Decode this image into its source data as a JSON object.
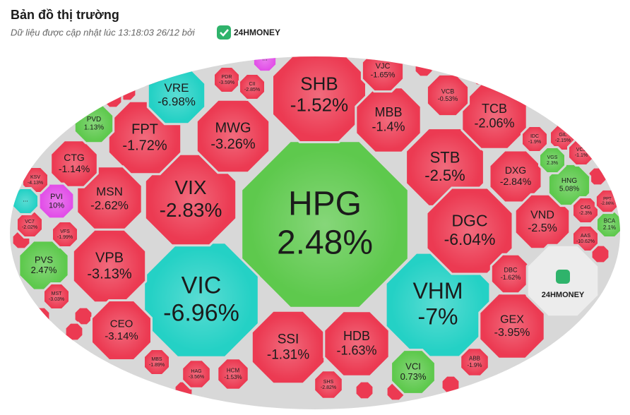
{
  "header": {
    "title": "Bản đồ thị trường",
    "subtitle": "Dữ liệu được cập nhật lúc 13:18:03 26/12 bởi",
    "brand": "24HMONEY"
  },
  "cells": [
    {
      "label": "HPG",
      "change": "2.48%",
      "color": "#5ec94d"
    },
    {
      "label": "VIC",
      "change": "-6.96%",
      "color": "#24d1c5"
    },
    {
      "label": "VHM",
      "change": "-7%",
      "color": "#24d1c5"
    },
    {
      "label": "SHB",
      "change": "-1.52%",
      "color": "#ec3a52"
    },
    {
      "label": "VIX",
      "change": "-2.83%",
      "color": "#ec3a52"
    },
    {
      "label": "MWG",
      "change": "-3.26%",
      "color": "#ec3a52"
    },
    {
      "label": "FPT",
      "change": "-1.72%",
      "color": "#ec3a52"
    },
    {
      "label": "VRE",
      "change": "-6.98%",
      "color": "#24d1c5"
    },
    {
      "label": "MSN",
      "change": "-2.62%",
      "color": "#ec3a52"
    },
    {
      "label": "VPB",
      "change": "-3.13%",
      "color": "#ec3a52"
    },
    {
      "label": "CTG",
      "change": "-1.14%",
      "color": "#ec3a52"
    },
    {
      "label": "PVD",
      "change": "1.13%",
      "color": "#5ec94d"
    },
    {
      "label": "PVI",
      "change": "10%",
      "color": "#e24fe8"
    },
    {
      "label": "PVS",
      "change": "2.47%",
      "color": "#5ec94d"
    },
    {
      "label": "CEO",
      "change": "-3.14%",
      "color": "#ec3a52"
    },
    {
      "label": "SSI",
      "change": "-1.31%",
      "color": "#ec3a52"
    },
    {
      "label": "HDB",
      "change": "-1.63%",
      "color": "#ec3a52"
    },
    {
      "label": "VCI",
      "change": "0.73%",
      "color": "#5ec94d"
    },
    {
      "label": "MBB",
      "change": "-1.4%",
      "color": "#ec3a52"
    },
    {
      "label": "STB",
      "change": "-2.5%",
      "color": "#ec3a52"
    },
    {
      "label": "TCB",
      "change": "-2.06%",
      "color": "#ec3a52"
    },
    {
      "label": "DGC",
      "change": "-6.04%",
      "color": "#ec3a52"
    },
    {
      "label": "DXG",
      "change": "-2.84%",
      "color": "#ec3a52"
    },
    {
      "label": "VND",
      "change": "-2.5%",
      "color": "#ec3a52"
    },
    {
      "label": "HNG",
      "change": "5.08%",
      "color": "#5ec94d"
    },
    {
      "label": "GEX",
      "change": "-3.95%",
      "color": "#ec3a52"
    },
    {
      "label": "DBC",
      "change": "-1.62%",
      "color": "#ec3a52"
    },
    {
      "label": "VJC",
      "change": "-1.65%",
      "color": "#ec3a52"
    },
    {
      "label": "VCB",
      "change": "-0.53%",
      "color": "#ec3a52"
    },
    {
      "label": "PDR",
      "change": "-3.59%",
      "color": "#ec3a52"
    },
    {
      "label": "CII",
      "change": "-2.85%",
      "color": "#ec3a52"
    },
    {
      "label": "IDC",
      "change": "-1.9%",
      "color": "#ec3a52"
    },
    {
      "label": "GIL",
      "change": "-2.15%",
      "color": "#ec3a52"
    },
    {
      "label": "VGS",
      "change": "2.3%",
      "color": "#5ec94d"
    },
    {
      "label": "VCS",
      "change": "-1.1%",
      "color": "#ec3a52"
    },
    {
      "label": "KSV",
      "change": "-4.13%",
      "color": "#ec3a52"
    },
    {
      "label": "VC7",
      "change": "-2.02%",
      "color": "#ec3a52"
    },
    {
      "label": "VFS",
      "change": "-1.99%",
      "color": "#ec3a52"
    },
    {
      "label": "MST",
      "change": "-3.03%",
      "color": "#ec3a52"
    },
    {
      "label": "MBS",
      "change": "-1.89%",
      "color": "#ec3a52"
    },
    {
      "label": "HAG",
      "change": "-3.56%",
      "color": "#ec3a52"
    },
    {
      "label": "HCM",
      "change": "-1.53%",
      "color": "#ec3a52"
    },
    {
      "label": "SHS",
      "change": "-2.82%",
      "color": "#ec3a52"
    },
    {
      "label": "ABB",
      "change": "-1.9%",
      "color": "#ec3a52"
    },
    {
      "label": "C4G",
      "change": "-2.3%",
      "color": "#ec3a52"
    },
    {
      "label": "AAS",
      "change": "-10.62%",
      "color": "#ec3a52"
    },
    {
      "label": "BCA",
      "change": "2.1%",
      "color": "#5ec94d"
    },
    {
      "label": "PPT",
      "change": "-2.86%",
      "color": "#ec3a52"
    },
    {
      "label": "...",
      "color": "#e24fe8"
    },
    {
      "label": "...",
      "color": "#24d1c5"
    }
  ]
}
